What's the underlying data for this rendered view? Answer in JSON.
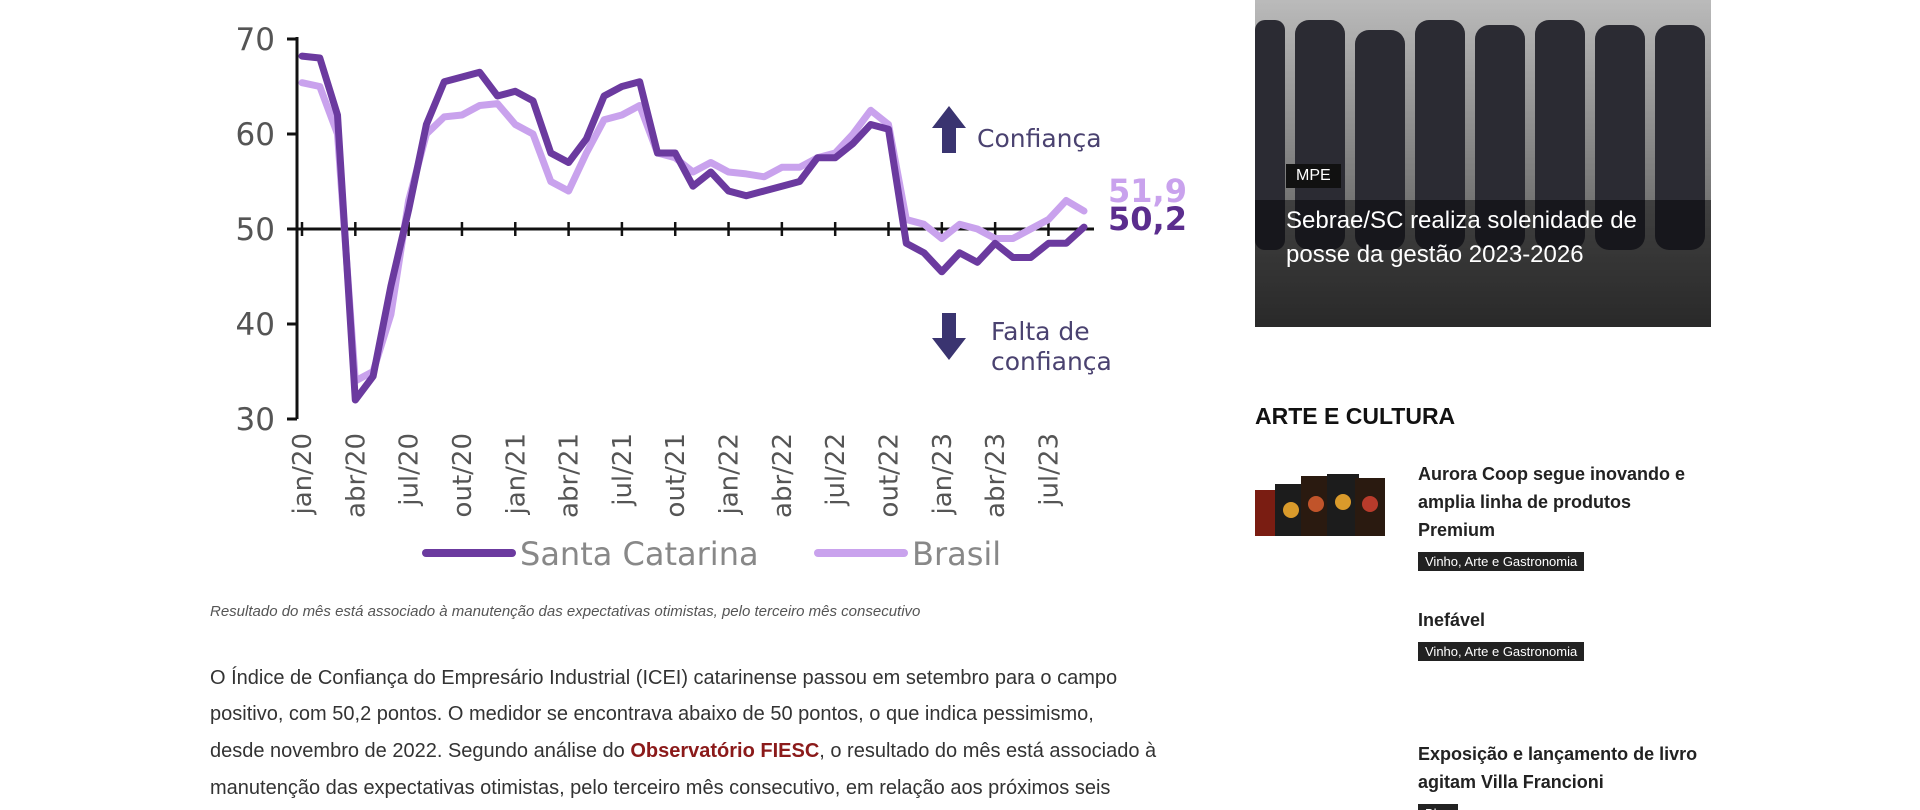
{
  "chart_data": {
    "type": "line",
    "categories": [
      "jan/20",
      null,
      null,
      "abr/20",
      null,
      null,
      "jul/20",
      null,
      null,
      "out/20",
      null,
      null,
      "jan/21",
      null,
      null,
      "abr/21",
      null,
      null,
      "jul/21",
      null,
      null,
      "out/21",
      null,
      null,
      "jan/22",
      null,
      null,
      "abr/22",
      null,
      null,
      "jul/22",
      null,
      null,
      "out/22",
      null,
      null,
      "jan/23",
      null,
      null,
      "abr/23",
      null,
      null,
      "jul/23",
      null,
      null
    ],
    "series": [
      {
        "name": "Santa Catarina",
        "color": "#6b3a9f",
        "values": [
          68.2,
          68,
          62,
          32,
          34.5,
          44,
          52,
          61,
          65.5,
          66,
          66.5,
          64,
          64.5,
          63.5,
          58,
          57,
          59.5,
          64,
          65,
          65.5,
          58,
          58,
          54.5,
          56,
          54,
          53.5,
          54,
          54.5,
          55,
          57.5,
          57.5,
          59,
          61,
          60.5,
          48.5,
          47.5,
          45.5,
          47.5,
          46.5,
          48.5,
          47,
          47,
          48.5,
          48.5,
          50.2
        ],
        "value_labels": [
          null,
          null,
          null,
          null,
          null,
          null,
          null,
          null,
          null,
          null,
          null,
          null,
          null,
          null,
          null,
          null,
          null,
          null,
          null,
          null,
          null,
          null,
          null,
          null,
          null,
          null,
          null,
          null,
          null,
          null,
          null,
          null,
          null,
          null,
          null,
          null,
          null,
          null,
          null,
          null,
          null,
          null,
          null,
          null,
          "50,2"
        ]
      },
      {
        "name": "Brasil",
        "color": "#c9a2ed",
        "values": [
          65.4,
          65,
          60,
          34,
          35,
          41,
          53,
          60,
          61.8,
          62,
          63,
          63.2,
          61,
          60,
          55,
          54,
          58,
          61.5,
          62,
          63,
          58,
          57.5,
          56,
          57,
          56,
          55.8,
          55.5,
          56.5,
          56.5,
          57.5,
          58,
          60,
          62.5,
          61,
          51,
          50.5,
          49,
          50.5,
          50,
          49,
          49,
          50,
          51,
          53,
          51.9
        ],
        "value_labels": [
          null,
          null,
          null,
          null,
          null,
          null,
          null,
          null,
          null,
          null,
          null,
          null,
          null,
          null,
          null,
          null,
          null,
          null,
          null,
          null,
          null,
          null,
          null,
          null,
          null,
          null,
          null,
          null,
          null,
          null,
          null,
          null,
          null,
          null,
          null,
          null,
          null,
          null,
          null,
          null,
          null,
          null,
          null,
          null,
          "51,9"
        ]
      }
    ],
    "ylim": [
      30,
      70
    ],
    "yticks": [
      30,
      40,
      50,
      60,
      70
    ],
    "reference_line": 50,
    "annotations": [
      "Confiança",
      "Falta de",
      "confiança"
    ],
    "legend": "bottom"
  },
  "caption": "Resultado do mês está associado à manutenção das expectativas otimistas, pelo terceiro mês consecutivo",
  "article": {
    "lines": [
      "O Índice de Confiança do Empresário Industrial (ICEI) catarinense passou em setembro para o campo",
      "positivo, com 50,2 pontos. O medidor se encontrava abaixo de 50 pontos, o que indica pessimismo,",
      {
        "before": "desde novembro de 2022. Segundo análise do ",
        "link": "Observatório FIESC",
        "after": ", o resultado do mês está associado à"
      },
      "manutenção das expectativas otimistas, pelo terceiro mês consecutivo, em relação aos próximos seis"
    ]
  },
  "sidebar": {
    "featured": {
      "tag": "MPE",
      "title_lines": [
        "Sebrae/SC realiza solenidade de",
        "posse da gestão 2023-2026"
      ]
    },
    "section_title": "ARTE E CULTURA",
    "items": [
      {
        "title_lines": [
          "Aurora Coop segue inovando e",
          "amplia linha de produtos",
          "Premium"
        ],
        "tag": "Vinho, Arte e Gastronomia"
      },
      {
        "title_lines": [
          "Inefável"
        ],
        "tag": "Vinho, Arte e Gastronomia"
      },
      {
        "title_lines": [
          "Exposição e lançamento de livro",
          "agitam Villa Francioni"
        ],
        "tag": "Blog"
      }
    ]
  }
}
